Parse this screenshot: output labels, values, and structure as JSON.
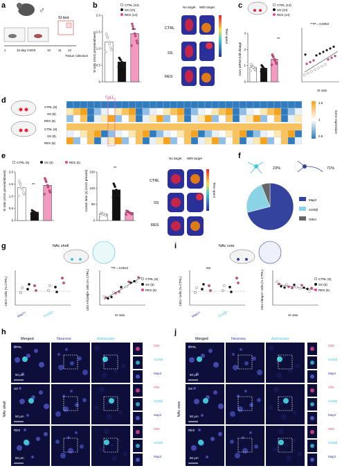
{
  "panel_labels": {
    "a": "a",
    "b": "b",
    "c": "c",
    "d": "d",
    "e": "e",
    "f": "f",
    "g": "g",
    "h": "h",
    "i": "i",
    "j": "j"
  },
  "colors": {
    "ctrl": "#ffffff",
    "ss": "#111111",
    "res": "#e8478d",
    "res_bar": "#f49ac1",
    "s100b": "#8ad4e6",
    "map2": "#33439e",
    "other": "#666666",
    "astro": "#3fc7d6"
  },
  "panel_a": {
    "timeline": [
      "1",
      "10-day CSDS",
      "10",
      "11",
      "12"
    ],
    "si_test": "SI test",
    "tissue": "Tissue collection"
  },
  "legend_b": {
    "ctrl": "CTRL (13)",
    "ss": "SS (10)",
    "res": "RES (14)"
  },
  "legend_c": {
    "ctrl": "CTRL (13)",
    "ss": "SS (10)",
    "res": "RES (14)"
  },
  "legend_e": {
    "ctrl": "CTRL (5)",
    "ss": "SS (5)",
    "res": "RES (5)"
  },
  "legend_g": {
    "ctrl": "CTRL (5)",
    "ss": "SS (5)",
    "res": "RES (5)"
  },
  "legend_i": {
    "ctrl": "CTRL (5)",
    "ss": "SS (5)",
    "res": "RES (5)"
  },
  "heat_b": {
    "no_target": "No target",
    "with_target": "With target",
    "rows": [
      "CTRL",
      "SS",
      "RES"
    ],
    "scale": "Time spent"
  },
  "heat_e": {
    "no_target": "No target",
    "with_target": "With target",
    "rows": [
      "CTRL",
      "SS",
      "RES"
    ],
    "scale": "Time spent"
  },
  "panel_c": {
    "stat": "***P = 0.0002",
    "ylabel": "Cnr1 mRNA fold change",
    "xlabel": "SI ratio",
    "sig": "**"
  },
  "panel_d": {
    "gene": "Cnr1",
    "rows_top": [
      "CTRL (8)",
      "SS (8)",
      "RES (8)"
    ],
    "rows_bottom": [
      "CTRL (8)",
      "SS (8)",
      "RES (8)"
    ],
    "scale": "Gene expression",
    "ticks": [
      "1.5",
      "1",
      "0.5"
    ]
  },
  "panel_f": {
    "pct_astro": "23%",
    "pct_neuron": "71%",
    "legend": [
      "Map2",
      "S100β",
      "Other"
    ]
  },
  "panel_g": {
    "region": "NAc shell",
    "stat": "**P = 0.0012",
    "ylabel_left": "CB1+ cells (% CTRL)",
    "ylabel_right": "CB1+/S100β+ cells (% CTRL)",
    "xlabel": "SI ratio",
    "cats": [
      "Map2+",
      "S100β+"
    ]
  },
  "panel_i": {
    "region": "NAc core",
    "ylabel_left": "CB1+ cells (% CTRL)",
    "ylabel_right": "CB1+/Map2+ cells (% CTRL)",
    "xlabel": "SI ratio",
    "cats": [
      "Map2+",
      "S100β+"
    ],
    "ns": "NS"
  },
  "panel_h": {
    "cols": [
      "Merged",
      "Neurons",
      "Astrocytes"
    ],
    "rows": [
      "CTRL",
      "SS",
      "RES"
    ],
    "side": "NAc shell",
    "scale": "50 μm",
    "markers": [
      "CB1",
      "S100β",
      "Map2"
    ]
  },
  "panel_j": {
    "cols": [
      "Merged",
      "Neurons",
      "Astrocytes"
    ],
    "rows": [
      "CTRL",
      "SS",
      "RES"
    ],
    "side": "NAc core",
    "scale": "50 μm",
    "markers": [
      "CB1",
      "S100β",
      "Map2"
    ]
  },
  "axis_b": {
    "ylabel": "SI ratio (AGG present/absent)",
    "ticks": [
      "0",
      "0.5",
      "1.0",
      "1.5",
      "2.0"
    ],
    "sig": "***"
  },
  "axis_e": {
    "ylabel1": "SI ratio (AGG present/absent)",
    "ylabel2": "Corner time (s) (AGG present)",
    "ticks1": [
      "0",
      "0.5",
      "1.0",
      "1.5",
      "2.0"
    ],
    "ticks2": [
      "0",
      "50",
      "100",
      "150"
    ],
    "sig1": "**",
    "sig2": "**"
  },
  "chart_data": [
    {
      "type": "bar",
      "id": "b",
      "categories": [
        "CTRL",
        "SS",
        "RES"
      ],
      "values": [
        1.2,
        0.6,
        1.45
      ],
      "ylim": [
        0,
        2.0
      ]
    },
    {
      "type": "bar",
      "id": "c",
      "categories": [
        "CTRL",
        "SS",
        "RES"
      ],
      "values": [
        0.9,
        0.85,
        1.4
      ],
      "ylim": [
        0,
        3
      ]
    },
    {
      "type": "bar",
      "id": "e1",
      "categories": [
        "CTRL",
        "SS",
        "RES"
      ],
      "values": [
        1.35,
        0.35,
        1.45
      ],
      "ylim": [
        0,
        2.0
      ]
    },
    {
      "type": "bar",
      "id": "e2",
      "categories": [
        "CTRL",
        "SS",
        "RES"
      ],
      "values": [
        20,
        95,
        25
      ],
      "ylim": [
        0,
        150
      ]
    },
    {
      "type": "pie",
      "id": "f",
      "categories": [
        "Map2",
        "S100β",
        "Other"
      ],
      "values": [
        71,
        23,
        6
      ]
    }
  ]
}
